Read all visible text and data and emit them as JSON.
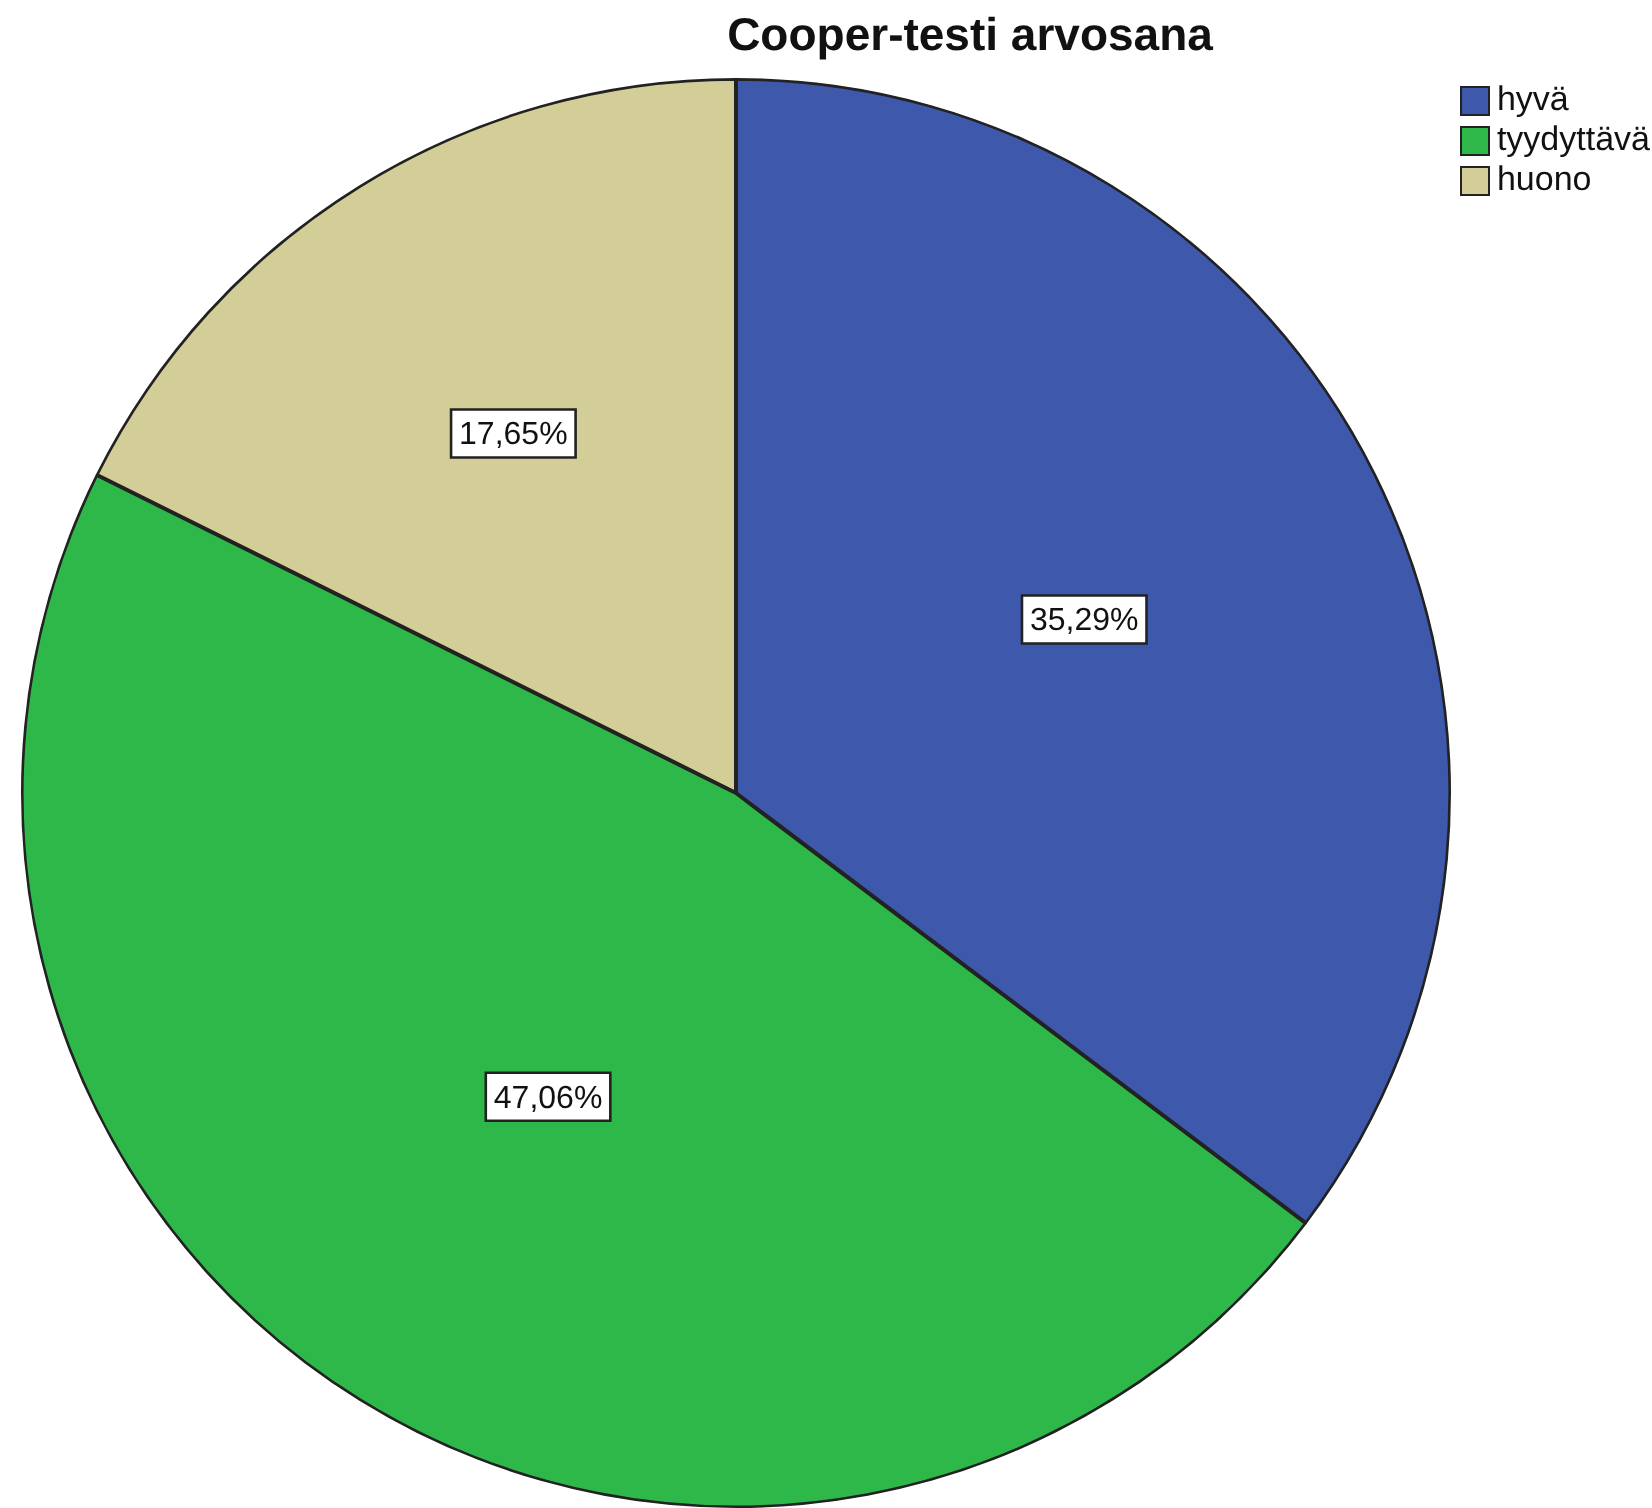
{
  "chart_data": {
    "type": "pie",
    "title": "Cooper-testi arvosana",
    "categories": [
      "hyvä",
      "tyydyttävä",
      "huono"
    ],
    "values": [
      35.29,
      47.06,
      17.65
    ],
    "colors": [
      "#3e58ac",
      "#2eb84a",
      "#d3ce97"
    ],
    "value_labels": [
      "35,29%",
      "47,06%",
      "17,65%"
    ],
    "legend": "top right"
  }
}
